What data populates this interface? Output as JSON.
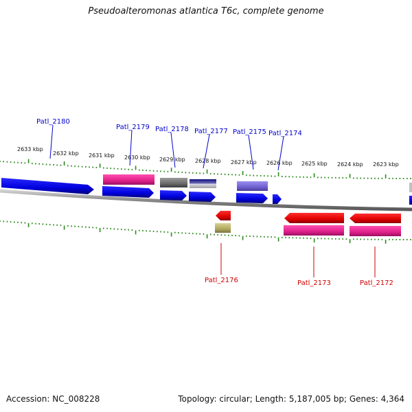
{
  "header": {
    "title": "Pseudoalteromonas atlantica T6c, complete genome"
  },
  "footer": {
    "accession": "Accession: NC_008228",
    "summary": "Topology: circular; Length: 5,187,005 bp; Genes: 4,364"
  },
  "colors": {
    "forward_cds": "#0000ee",
    "reverse_cds": "#ee0000",
    "forward_label": "#0000cc",
    "reverse_label": "#cc0000",
    "ticks": "#2a8a1a",
    "backbone": "#8a8a8a",
    "pink_feature": "#e0208a",
    "gray_feature": "#707070",
    "navy_feature": "#00008b",
    "lavender_feature": "#7b6fd6",
    "olive_feature": "#b8b070"
  },
  "scale_labels": [
    "2633 kbp",
    "2632 kbp",
    "2631 kbp",
    "2630 kbp",
    "2629 kbp",
    "2628 kbp",
    "2627 kbp",
    "2626 kbp",
    "2625 kbp",
    "2624 kbp",
    "2623 kbp"
  ],
  "gene_labels": {
    "forward": [
      "Patl_2180",
      "Patl_2179",
      "Patl_2178",
      "Patl_2177",
      "Patl_2175",
      "Patl_2174"
    ],
    "reverse": [
      "Patl_2176",
      "Patl_2173",
      "Patl_2172"
    ]
  }
}
